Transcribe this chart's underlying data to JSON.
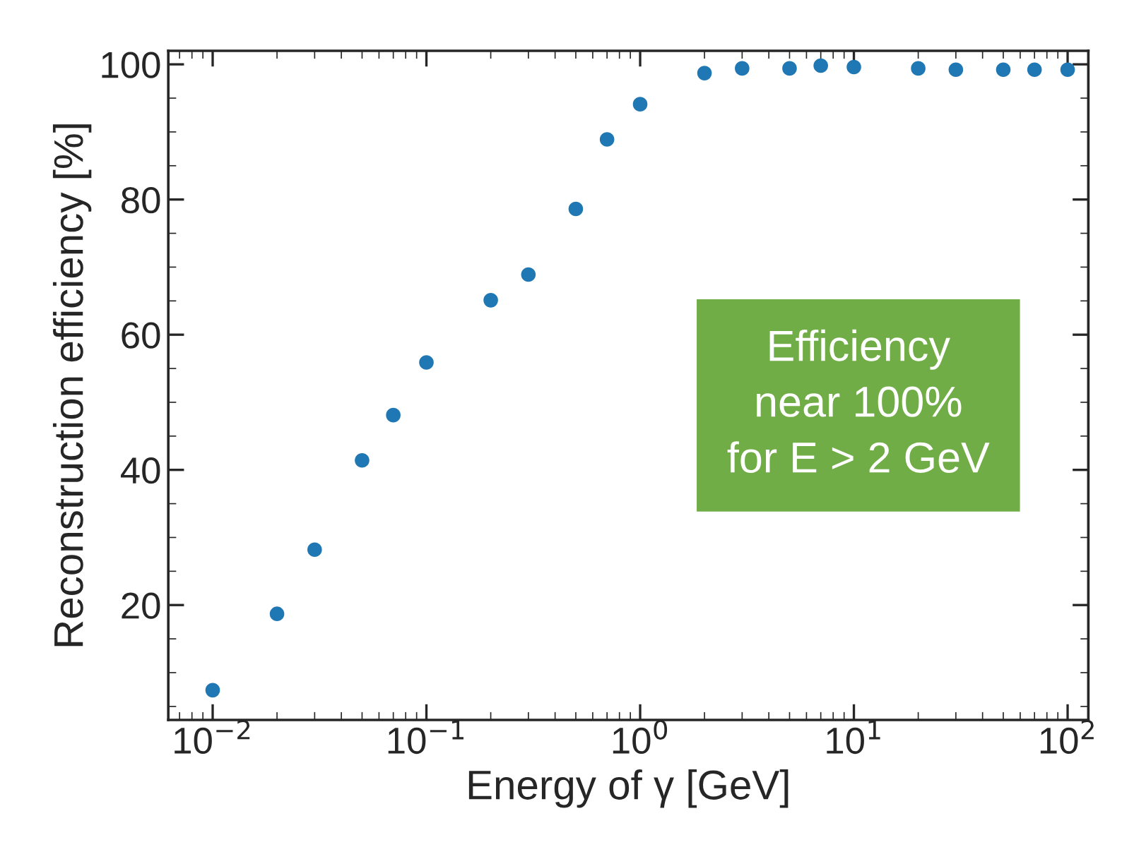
{
  "chart_data": {
    "type": "scatter",
    "xlabel": "Energy of γ [GeV]",
    "ylabel": "Reconstruction efficiency [%]",
    "x": [
      0.01,
      0.02,
      0.03,
      0.05,
      0.07,
      0.1,
      0.2,
      0.3,
      0.5,
      0.7,
      1,
      2,
      3,
      5,
      7,
      10,
      20,
      30,
      50,
      70,
      100
    ],
    "series": [
      {
        "color": "#1f77b4",
        "values": [
          7.4,
          18.7,
          28.2,
          41.4,
          48.1,
          55.9,
          65.1,
          68.9,
          78.6,
          88.9,
          94.1,
          98.7,
          99.4,
          99.4,
          99.8,
          99.6,
          99.4,
          99.2,
          99.2,
          99.2,
          99.2
        ]
      }
    ],
    "log": "x",
    "xlim": [
      0.0062,
      125
    ],
    "ylim": [
      3,
      102
    ],
    "xticks": [
      {
        "value": 0.01,
        "label": "10$^{−2}$"
      },
      {
        "value": 0.1,
        "label": "10$^{−1}$"
      },
      {
        "value": 1,
        "label": "10$^{0}$"
      },
      {
        "value": 10,
        "label": "10$^{1}$"
      },
      {
        "value": 100,
        "label": "10$^{2}$"
      }
    ],
    "yticks": [
      20,
      40,
      60,
      80,
      100
    ],
    "marker": "circle",
    "grid": false,
    "legend": false,
    "annotations": [
      "Efficiency\nnear 100%\nfor E > 2 GeV"
    ]
  }
}
